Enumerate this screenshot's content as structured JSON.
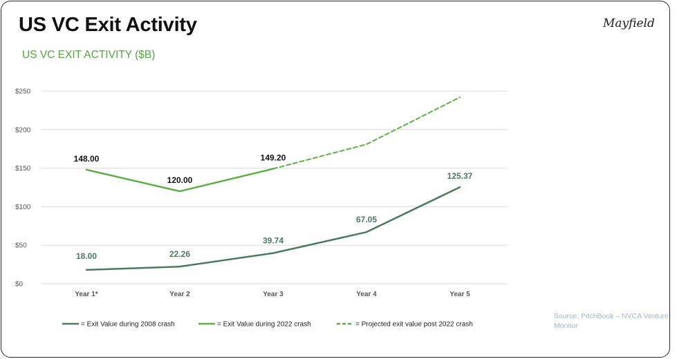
{
  "header": {
    "title": "US VC Exit Activity",
    "subtitle": "US VC EXIT ACTIVITY ($B)",
    "logo": "Mayfield"
  },
  "source_note": "Source: PitchBook – NVCA Venture Monitor",
  "colors": {
    "series_2008": "#4a7a5c",
    "series_2022": "#5cb043",
    "projected": "#5cb043",
    "label_2008": "#4a7a5c",
    "label_2022": "#111111",
    "gridline": "#d9d9d9",
    "subtitle": "#4fa83a"
  },
  "chart_data": {
    "type": "line",
    "categories": [
      "Year 1*",
      "Year 2",
      "Year 3",
      "Year 4",
      "Year 5"
    ],
    "ylim": [
      0,
      250
    ],
    "yticks": [
      "$0",
      "$50",
      "$100",
      "$150",
      "$200",
      "$250"
    ],
    "grid": true,
    "legend_position": "bottom",
    "series": [
      {
        "name": "= Exit Value during 2008 crash",
        "values": [
          18.0,
          22.26,
          39.74,
          67.05,
          125.37
        ],
        "labels": [
          "18.00",
          "22.26",
          "39.74",
          "67.05",
          "125.37"
        ],
        "style": "solid"
      },
      {
        "name": "= Exit Value during 2022 crash",
        "values": [
          148.0,
          120.0,
          149.2,
          null,
          null
        ],
        "labels": [
          "148.00",
          "120.00",
          "149.20",
          "",
          ""
        ],
        "style": "solid"
      },
      {
        "name": "= Projected exit value post 2022 crash",
        "values": [
          null,
          null,
          149.2,
          181,
          242
        ],
        "labels": [
          "",
          "",
          "",
          "",
          ""
        ],
        "style": "dashed"
      }
    ]
  }
}
